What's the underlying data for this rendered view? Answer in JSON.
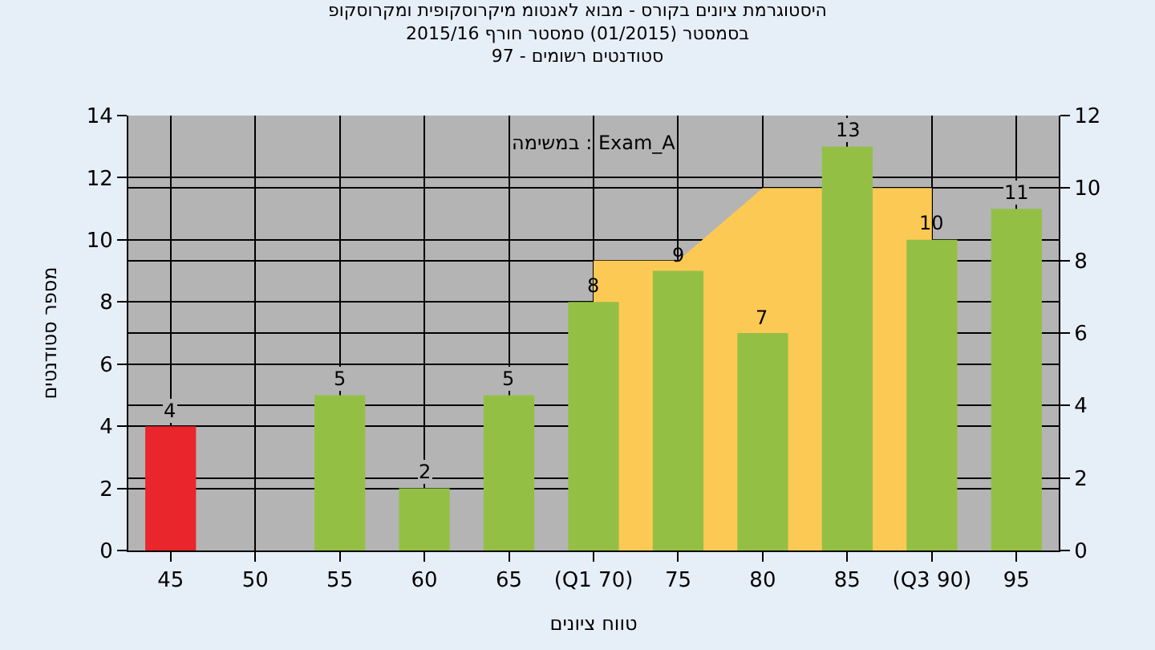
{
  "chart_data": {
    "type": "bar",
    "title": "היסטוגרמת ציונים בקורס - מבוא לאנטומ מיקרוסקופית ומקרוסקופ",
    "subtitle": "בסמסטר (01/2015) סמסטר חורף 2015/16\nסטודנטים רשומים - 97",
    "xlabel": "טווח ציונים",
    "ylabel": "מספר סטודנטים",
    "annotations": [
      "במשימה : Exam_A"
    ],
    "categories": [
      "45",
      "50",
      "55",
      "60",
      "65",
      "(Q1 70)",
      "75",
      "80",
      "85",
      "(Q3 90)",
      "95"
    ],
    "series": [
      {
        "type": "area",
        "axis": "y2",
        "color": "#fdc955",
        "values": [
          null,
          null,
          null,
          null,
          null,
          8,
          8,
          10,
          null,
          10,
          null
        ]
      },
      {
        "value_labels": [
          "4",
          null,
          "5",
          "2",
          "5",
          "8",
          "9",
          "7",
          "13",
          "10",
          "11"
        ],
        "colors": [
          "#e8262b",
          null,
          "#94bf45",
          "#94bf45",
          "#94bf45",
          "#94bf45",
          "#94bf45",
          "#94bf45",
          "#94bf45",
          "#94bf45",
          "#94bf45"
        ],
        "values": [
          4,
          null,
          5,
          2,
          5,
          8,
          9,
          7,
          13,
          10,
          11
        ]
      }
    ],
    "ylim": [
      0,
      14
    ],
    "yticks": [
      0,
      2,
      4,
      6,
      8,
      10,
      12,
      14
    ],
    "y2lim": [
      0,
      12
    ],
    "y2ticks": [
      0,
      2,
      4,
      6,
      8,
      10,
      12
    ],
    "grid": true
  }
}
